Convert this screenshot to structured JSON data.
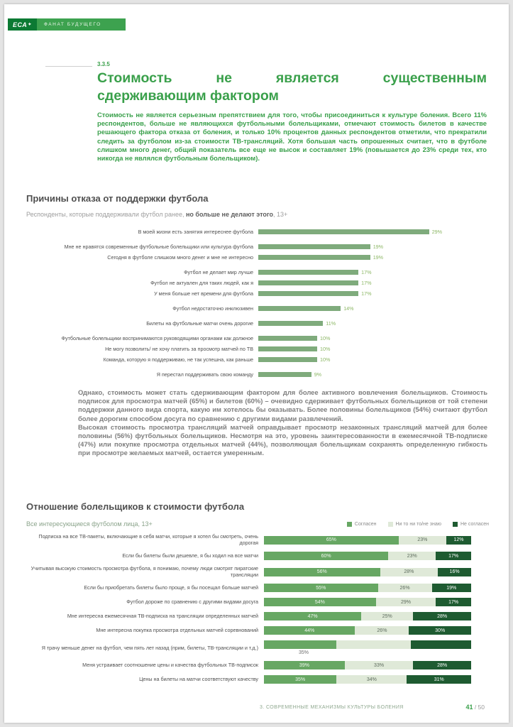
{
  "brand_bar": {
    "logo": "ЕСА",
    "logo_mark": "✦",
    "name": "ФАНАТ БУДУЩЕГО"
  },
  "section": {
    "number": "3.3.5",
    "title_line1": "Стоимость не является существенным",
    "title_line2": "сдерживающим фактором"
  },
  "intro": "Стоимость не является серьезным препятствием для того, чтобы присоединиться к культуре боления. Всего 11% респондентов, больше не являющихся футбольными болельщиками, отмечают стоимость билетов в качестве решающего фактора отказа от боления, и только 10% процентов данных респондентов отметили, что прекратили следить за футболом из-за стоимости ТВ-трансляций. Хотя большая часть опрошенных считает, что в футболе слишком много денег, общий показатель все еще не высок и составляет 19% (повышается до 23% среди тех, кто никогда не являлся футбольным болельщиком).",
  "reasons_block": {
    "heading": "Причины отказа от поддержки футбола",
    "subtitle_prefix": "Респонденты, которые поддерживали футбол ранее, ",
    "subtitle_bold": "но больше не делают этого",
    "subtitle_suffix": ", 13+"
  },
  "analysis": {
    "p1": "Однако, стоимость может стать сдерживающим фактором для более активного вовлечения болельщиков. Стоимость подписок для просмотра матчей (65%) и билетов (60%) – очевидно сдерживает футбольных болельщиков от той степени поддержки данного вида спорта, какую им хотелось бы оказывать. Более половины болельщиков (54%) считают футбол более дорогим способом досуга по сравнению с другими видами развлечений.",
    "p2": "Высокая стоимость просмотра трансляций матчей оправдывает просмотр незаконных трансляций матчей для более половины (56%) футбольных болельщиков. Несмотря на это, уровень заинтересованности в ежемесячной ТВ-подписке (47%) или покупке просмотра отдельных матчей (44%), позволяющая болельщикам сохранять определенную гибкость при просмотре желаемых матчей, остается умеренным."
  },
  "attitude_block": {
    "heading": "Отношение болельщиков к стоимости футбола",
    "subtitle": "Все интересующиеся футболом лица, 13+"
  },
  "footer": {
    "section_label": "3. СОВРЕМЕННЫЕ МЕХАНИЗМЫ КУЛЬТУРЫ БОЛЕНИЯ",
    "page_current": "41",
    "page_total": " / 50"
  },
  "colors": {
    "accent_green": "#3aa04b",
    "bar_green": "#7fab7c",
    "agree": "#67a763",
    "neutral": "#dfe9d8",
    "disagree": "#1e5b31"
  },
  "chart_data": [
    {
      "type": "bar",
      "orientation": "horizontal",
      "title": "Причины отказа от поддержки футбола",
      "subtitle": "Респонденты, которые поддерживали футбол ранее, но больше не делают этого, 13+",
      "unit": "%",
      "xlim": [
        0,
        30
      ],
      "bar_color": "#7fab7c",
      "value_color": "#8cb765",
      "categories": [
        "В моей жизни есть занятия интереснее футбола",
        "Мне не нравятся современные футбольные болельщики или культура футбола",
        "Сегодня в футболе слишком много денег и мне не интересно",
        "Футбол не делает мир лучше",
        "Футбол не актуален для таких людей, как я",
        "У меня больше нет времени для футбола",
        "Футбол недостаточно инклюзивен",
        "Билеты на футбольные матчи очень дорогие",
        "Футбольные болельщики воспринимаются руководящими органами как должное",
        "Не могу позволить/ не хочу платить за просмотр матчей по ТВ",
        "Команда, которую я поддерживаю, не так успешна, как раньше",
        "Я перестал поддерживать свою команду"
      ],
      "values": [
        29,
        19,
        19,
        17,
        17,
        17,
        14,
        11,
        10,
        10,
        10,
        9
      ],
      "group_breaks_after": [
        0,
        2,
        5,
        6,
        7,
        10
      ]
    },
    {
      "type": "stacked_bar",
      "orientation": "horizontal",
      "title": "Отношение болельщиков к стоимости футбола",
      "subtitle": "Все интересующиеся футболом лица, 13+",
      "legend": [
        "Согласен",
        "Ни то ни то/не знаю",
        "Не согласен"
      ],
      "legend_position": "top-right",
      "colors": [
        "#67a763",
        "#dfe9d8",
        "#1e5b31"
      ],
      "categories": [
        "Подписка на все ТВ-пакеты, включающие в себя матчи, которые я хотел бы смотреть, очень дорогая",
        "Если бы билеты были дешевле, я бы ходил на все матчи",
        "Учитывая высокую стоимость просмотра футбола, я понимаю, почему люди смотрят пиратские трансляции",
        "Если бы приобретать билеты было проще, я бы посещал больше матчей",
        "Футбол дороже по сравнению с другими видами досуга",
        "Мне интересна ежемесячная ТВ-подписка на трансляции определенных матчей",
        "Мне интересна покупка просмотра отдельных матчей соревнований",
        "Я трачу меньше денег на футбол, чем пять лет назад (прим, билеты, ТВ-трансляции и т.д.)",
        "Меня устраивает соотношение цены и качества футбольных ТВ-подписок",
        "Цены на билеты на матчи соответствуют качеству"
      ],
      "series": [
        {
          "name": "Согласен",
          "values": [
            65,
            60,
            56,
            55,
            54,
            47,
            44,
            35,
            39,
            35
          ]
        },
        {
          "name": "Ни то ни то/не знаю",
          "values": [
            23,
            23,
            28,
            26,
            29,
            25,
            26,
            36,
            33,
            34
          ]
        },
        {
          "name": "Не согласен",
          "values": [
            12,
            17,
            16,
            19,
            17,
            28,
            30,
            29,
            28,
            31
          ]
        }
      ],
      "segment_labels": [
        [
          "65%",
          "23%",
          "12%"
        ],
        [
          "60%",
          "23%",
          "17%"
        ],
        [
          "56%",
          "28%",
          "16%"
        ],
        [
          "55%",
          "26%",
          "19%"
        ],
        [
          "54%",
          "29%",
          "17%"
        ],
        [
          "47%",
          "25%",
          "28%"
        ],
        [
          "44%",
          "26%",
          "30%"
        ],
        [
          "",
          "",
          ""
        ],
        [
          "39%",
          "33%",
          "28%"
        ],
        [
          "35%",
          "34%",
          "31%"
        ]
      ],
      "below_labels": {
        "7": "35%"
      }
    }
  ]
}
